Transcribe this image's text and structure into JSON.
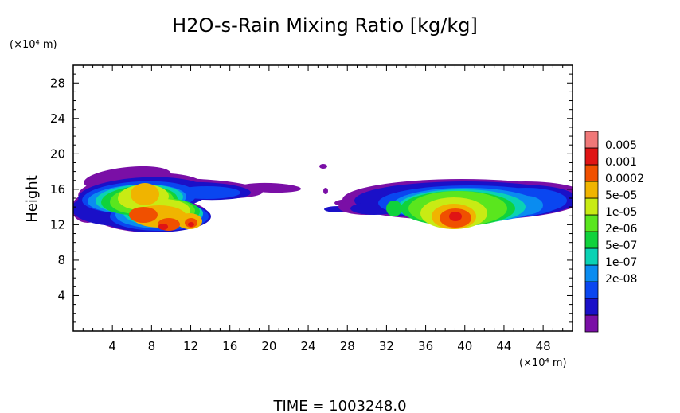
{
  "chart_data": {
    "type": "heatmap",
    "title": "H2O-s-Rain Mixing Ratio [kg/kg]",
    "ylabel": "Height",
    "x_unit": "(×10⁴ m)",
    "y_unit": "(×10⁴ m)",
    "xlim": [
      0,
      51
    ],
    "ylim": [
      0,
      30
    ],
    "x_ticks": [
      "4",
      "8",
      "12",
      "16",
      "20",
      "24",
      "28",
      "32",
      "36",
      "40",
      "44",
      "48"
    ],
    "y_ticks": [
      "4",
      "8",
      "12",
      "16",
      "20",
      "24",
      "28"
    ],
    "colorbar": {
      "labels": [
        "0.005",
        "0.001",
        "0.0002",
        "5e-05",
        "1e-05",
        "2e-06",
        "5e-07",
        "1e-07",
        "2e-08"
      ],
      "colors": [
        "#7a0fa6",
        "#1a10c8",
        "#0a46f0",
        "#0a8cf0",
        "#0ad2b4",
        "#10d23c",
        "#5ae61e",
        "#c8eb14",
        "#f0b400",
        "#f05000",
        "#e01414",
        "#f07878"
      ]
    },
    "footer": "TIME = 1003248.0"
  }
}
